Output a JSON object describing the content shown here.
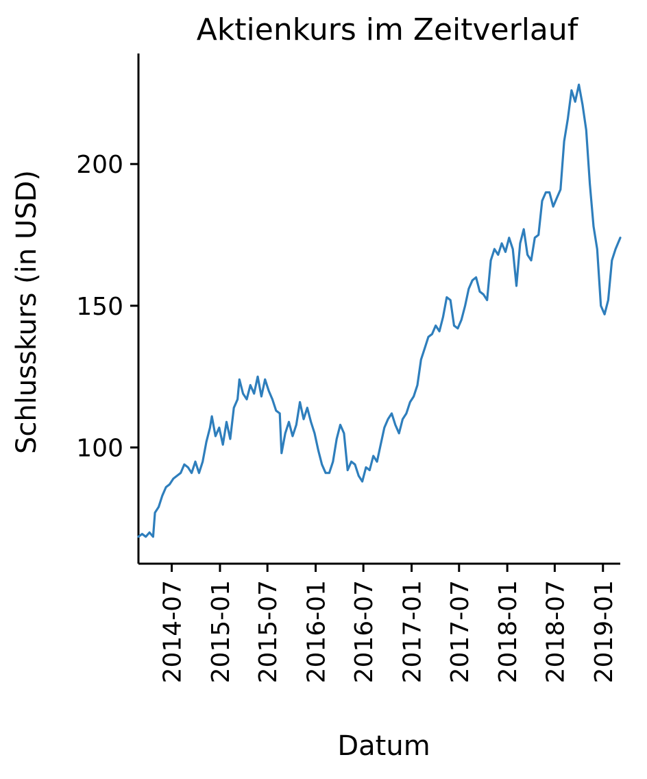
{
  "chart_data": {
    "type": "line",
    "title": "Aktienkurs im Zeitverlauf",
    "xlabel": "Datum",
    "ylabel": "Schlusskurs (in USD)",
    "xlim": [
      "2014-02-24",
      "2019-03-08"
    ],
    "ylim": [
      59,
      239
    ],
    "x_ticks": [
      "2014-07-01",
      "2015-01-01",
      "2015-07-01",
      "2016-01-01",
      "2016-07-01",
      "2017-01-01",
      "2017-07-01",
      "2018-01-01",
      "2018-07-01",
      "2019-01-01"
    ],
    "x_tick_labels": [
      "2014-07",
      "2015-01",
      "2015-07",
      "2016-01",
      "2016-07",
      "2017-01",
      "2017-07",
      "2018-01",
      "2018-07",
      "2019-01"
    ],
    "y_ticks": [
      100,
      150,
      200
    ],
    "y_tick_labels": [
      "100",
      "150",
      "200"
    ],
    "grid": false,
    "legend": false,
    "series": [
      {
        "color": "#2e7ebc",
        "points": [
          [
            "2014-02-24",
            68.5
          ],
          [
            "2014-03-10",
            69.5
          ],
          [
            "2014-03-24",
            68.5
          ],
          [
            "2014-04-07",
            70
          ],
          [
            "2014-04-21",
            68.5
          ],
          [
            "2014-04-28",
            77
          ],
          [
            "2014-05-12",
            79
          ],
          [
            "2014-05-26",
            83
          ],
          [
            "2014-06-09",
            86
          ],
          [
            "2014-06-23",
            87
          ],
          [
            "2014-07-07",
            89
          ],
          [
            "2014-07-21",
            90
          ],
          [
            "2014-08-04",
            91
          ],
          [
            "2014-08-18",
            94
          ],
          [
            "2014-09-01",
            93
          ],
          [
            "2014-09-15",
            91
          ],
          [
            "2014-09-29",
            95
          ],
          [
            "2014-10-13",
            91
          ],
          [
            "2014-10-27",
            95
          ],
          [
            "2014-11-10",
            102
          ],
          [
            "2014-11-24",
            107
          ],
          [
            "2014-12-01",
            111
          ],
          [
            "2014-12-15",
            104
          ],
          [
            "2014-12-29",
            107
          ],
          [
            "2015-01-12",
            101
          ],
          [
            "2015-01-26",
            109
          ],
          [
            "2015-02-09",
            103
          ],
          [
            "2015-02-23",
            114
          ],
          [
            "2015-03-09",
            117
          ],
          [
            "2015-03-16",
            124
          ],
          [
            "2015-03-30",
            119
          ],
          [
            "2015-04-13",
            117
          ],
          [
            "2015-04-27",
            122
          ],
          [
            "2015-05-11",
            119
          ],
          [
            "2015-05-25",
            125
          ],
          [
            "2015-06-08",
            118
          ],
          [
            "2015-06-22",
            124
          ],
          [
            "2015-07-06",
            120
          ],
          [
            "2015-07-20",
            117
          ],
          [
            "2015-08-03",
            113
          ],
          [
            "2015-08-17",
            112
          ],
          [
            "2015-08-24",
            98
          ],
          [
            "2015-09-07",
            105
          ],
          [
            "2015-09-21",
            109
          ],
          [
            "2015-10-05",
            104
          ],
          [
            "2015-10-19",
            108
          ],
          [
            "2015-11-02",
            116
          ],
          [
            "2015-11-16",
            110
          ],
          [
            "2015-11-30",
            114
          ],
          [
            "2015-12-14",
            109
          ],
          [
            "2015-12-28",
            105
          ],
          [
            "2016-01-11",
            99
          ],
          [
            "2016-01-25",
            94
          ],
          [
            "2016-02-08",
            91
          ],
          [
            "2016-02-22",
            91
          ],
          [
            "2016-03-07",
            95
          ],
          [
            "2016-03-21",
            103
          ],
          [
            "2016-04-04",
            108
          ],
          [
            "2016-04-18",
            105
          ],
          [
            "2016-05-02",
            92
          ],
          [
            "2016-05-16",
            95
          ],
          [
            "2016-05-30",
            94
          ],
          [
            "2016-06-13",
            90
          ],
          [
            "2016-06-27",
            88
          ],
          [
            "2016-07-11",
            93
          ],
          [
            "2016-07-25",
            92
          ],
          [
            "2016-08-08",
            97
          ],
          [
            "2016-08-22",
            95
          ],
          [
            "2016-09-05",
            101
          ],
          [
            "2016-09-19",
            107
          ],
          [
            "2016-10-03",
            110
          ],
          [
            "2016-10-17",
            112
          ],
          [
            "2016-10-31",
            108
          ],
          [
            "2016-11-14",
            105
          ],
          [
            "2016-11-28",
            110
          ],
          [
            "2016-12-12",
            112
          ],
          [
            "2016-12-26",
            116
          ],
          [
            "2017-01-09",
            118
          ],
          [
            "2017-01-23",
            122
          ],
          [
            "2017-02-06",
            131
          ],
          [
            "2017-02-20",
            135
          ],
          [
            "2017-03-06",
            139
          ],
          [
            "2017-03-20",
            140
          ],
          [
            "2017-04-03",
            143
          ],
          [
            "2017-04-17",
            141
          ],
          [
            "2017-05-01",
            146
          ],
          [
            "2017-05-15",
            153
          ],
          [
            "2017-05-29",
            152
          ],
          [
            "2017-06-12",
            143
          ],
          [
            "2017-06-26",
            142
          ],
          [
            "2017-07-10",
            145
          ],
          [
            "2017-07-24",
            150
          ],
          [
            "2017-08-07",
            156
          ],
          [
            "2017-08-21",
            159
          ],
          [
            "2017-09-04",
            160
          ],
          [
            "2017-09-18",
            155
          ],
          [
            "2017-10-02",
            154
          ],
          [
            "2017-10-16",
            152
          ],
          [
            "2017-10-30",
            166
          ],
          [
            "2017-11-13",
            170
          ],
          [
            "2017-11-27",
            168
          ],
          [
            "2017-12-11",
            172
          ],
          [
            "2017-12-25",
            169
          ],
          [
            "2018-01-08",
            174
          ],
          [
            "2018-01-22",
            170
          ],
          [
            "2018-02-05",
            157
          ],
          [
            "2018-02-19",
            172
          ],
          [
            "2018-03-05",
            177
          ],
          [
            "2018-03-19",
            168
          ],
          [
            "2018-04-02",
            166
          ],
          [
            "2018-04-16",
            174
          ],
          [
            "2018-04-30",
            175
          ],
          [
            "2018-05-14",
            187
          ],
          [
            "2018-05-28",
            190
          ],
          [
            "2018-06-11",
            190
          ],
          [
            "2018-06-25",
            185
          ],
          [
            "2018-07-09",
            188
          ],
          [
            "2018-07-23",
            191
          ],
          [
            "2018-08-06",
            208
          ],
          [
            "2018-08-20",
            216
          ],
          [
            "2018-09-03",
            226
          ],
          [
            "2018-09-17",
            222
          ],
          [
            "2018-10-01",
            228
          ],
          [
            "2018-10-15",
            221
          ],
          [
            "2018-10-29",
            212
          ],
          [
            "2018-11-12",
            193
          ],
          [
            "2018-11-26",
            178
          ],
          [
            "2018-12-10",
            170
          ],
          [
            "2018-12-24",
            150
          ],
          [
            "2019-01-07",
            147
          ],
          [
            "2019-01-21",
            152
          ],
          [
            "2019-02-04",
            166
          ],
          [
            "2019-02-18",
            170
          ],
          [
            "2019-03-08",
            174
          ]
        ]
      }
    ]
  }
}
